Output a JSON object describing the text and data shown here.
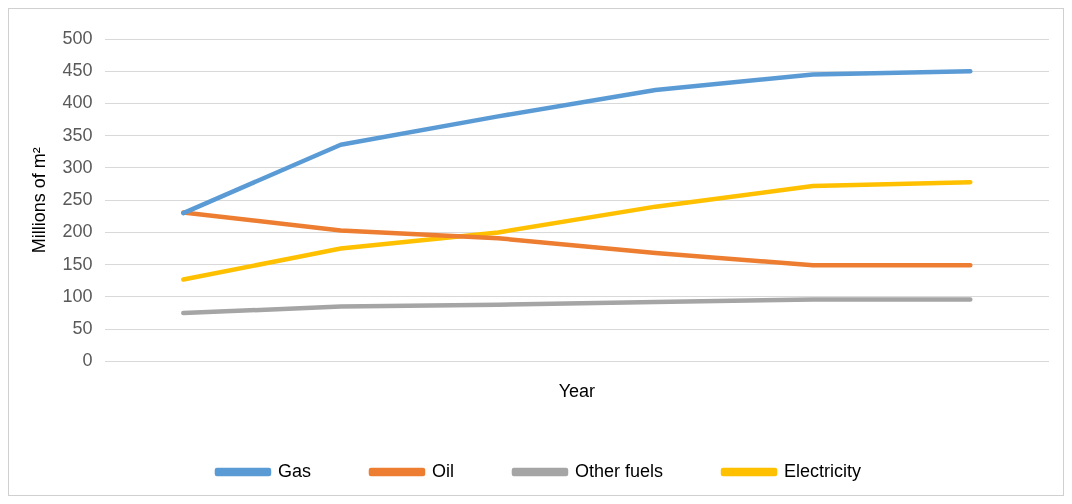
{
  "chart_data": {
    "type": "line",
    "xlabel": "Year",
    "ylabel": "Millions of m²",
    "categories": [
      null,
      null,
      null,
      null,
      null,
      null
    ],
    "series": [
      {
        "name": "Gas",
        "color": "#5b9bd5",
        "values": [
          230,
          336,
          380,
          421,
          445,
          450
        ]
      },
      {
        "name": "Oil",
        "color": "#ed7d31",
        "values": [
          231,
          203,
          191,
          168,
          149,
          149
        ]
      },
      {
        "name": "Other fuels",
        "color": "#a5a5a5",
        "values": [
          75,
          85,
          88,
          92,
          96,
          96
        ]
      },
      {
        "name": "Electricity",
        "color": "#ffc000",
        "values": [
          127,
          175,
          200,
          240,
          272,
          278
        ]
      }
    ],
    "ylim": [
      0,
      500
    ],
    "yticks": [
      0,
      50,
      100,
      150,
      200,
      250,
      300,
      350,
      400,
      450,
      500
    ],
    "grid": "y",
    "legend": "bottom",
    "tick_labels": "y",
    "marker": "none",
    "line_style": "solid"
  }
}
